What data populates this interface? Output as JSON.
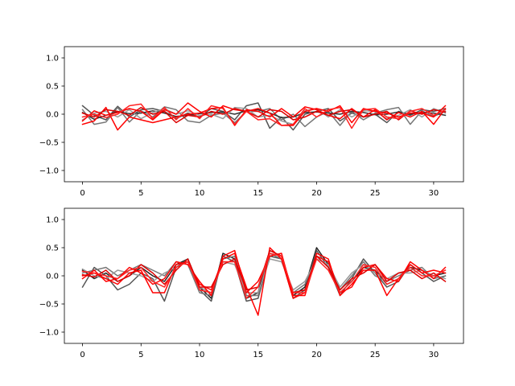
{
  "chart_data": [
    {
      "type": "line",
      "title": "",
      "xlabel": "",
      "ylabel": "",
      "xlim": [
        -1.55,
        32.55
      ],
      "ylim": [
        -1.2,
        1.2
      ],
      "x_ticks": [
        0,
        5,
        10,
        15,
        20,
        25,
        30
      ],
      "y_ticks": [
        -1.0,
        -0.5,
        0.0,
        0.5,
        1.0
      ],
      "x_tick_labels": [
        "0",
        "5",
        "10",
        "15",
        "20",
        "25",
        "30"
      ],
      "y_tick_labels": [
        "−1.0",
        "−0.5",
        "0.0",
        "0.5",
        "1.0"
      ],
      "grid": false,
      "legend": "none",
      "x": [
        0,
        1,
        2,
        3,
        4,
        5,
        6,
        7,
        8,
        9,
        10,
        11,
        12,
        13,
        14,
        15,
        16,
        17,
        18,
        19,
        20,
        21,
        22,
        23,
        24,
        25,
        26,
        27,
        28,
        29,
        30,
        31
      ],
      "series": [
        {
          "color": "#555555",
          "values": [
            0.15,
            -0.02,
            -0.1,
            0.14,
            -0.05,
            0.08,
            0.1,
            0.05,
            -0.08,
            0.02,
            -0.05,
            0.1,
            0.05,
            -0.1,
            0.15,
            0.2,
            -0.25,
            -0.05,
            -0.28,
            0.0,
            0.05,
            0.1,
            -0.12,
            0.02,
            -0.05,
            0.0,
            -0.15,
            0.05,
            -0.02,
            0.08,
            0.05,
            0.1
          ]
        },
        {
          "color": "#777777",
          "values": [
            0.08,
            -0.18,
            -0.14,
            0.12,
            -0.14,
            0.06,
            -0.05,
            0.13,
            0.08,
            -0.12,
            -0.15,
            -0.02,
            0.02,
            -0.15,
            0.05,
            0.05,
            0.1,
            -0.1,
            0.0,
            -0.22,
            -0.05,
            0.05,
            -0.2,
            0.05,
            -0.1,
            0.02,
            0.08,
            0.12,
            -0.18,
            0.06,
            -0.04,
            0.05
          ]
        },
        {
          "color": "#333333",
          "values": [
            0.03,
            -0.09,
            -0.02,
            0.05,
            0.01,
            0.02,
            0.06,
            0.02,
            -0.04,
            -0.02,
            0.01,
            0.03,
            0.04,
            0.0,
            0.06,
            0.08,
            0.02,
            -0.06,
            -0.05,
            0.03,
            0.04,
            0.02,
            0.0,
            0.05,
            0.03,
            -0.01,
            0.0,
            0.04,
            0.0,
            0.03,
            0.02,
            -0.02
          ]
        },
        {
          "color": "#999999",
          "values": [
            -0.1,
            0.02,
            0.05,
            -0.05,
            0.08,
            -0.08,
            0.03,
            0.1,
            0.0,
            0.06,
            -0.02,
            0.0,
            -0.08,
            0.12,
            0.1,
            -0.05,
            -0.02,
            -0.12,
            -0.18,
            0.06,
            0.1,
            -0.05,
            0.08,
            -0.05,
            0.06,
            0.05,
            -0.08,
            -0.02,
            0.08,
            -0.05,
            0.1,
            0.02
          ]
        },
        {
          "color": "#ff0000",
          "values": [
            -0.12,
            0.06,
            -0.02,
            0.03,
            0.1,
            0.05,
            -0.1,
            0.08,
            0.0,
            0.2,
            0.05,
            -0.05,
            0.15,
            0.08,
            0.05,
            0.1,
            0.02,
            -0.2,
            -0.2,
            0.05,
            0.1,
            0.05,
            0.15,
            -0.15,
            0.1,
            0.05,
            0.02,
            -0.05,
            0.02,
            0.02,
            -0.05,
            0.15
          ]
        },
        {
          "color": "#ff0000",
          "values": [
            -0.18,
            -0.12,
            0.12,
            -0.28,
            -0.05,
            -0.1,
            -0.15,
            -0.1,
            -0.05,
            0.0,
            0.02,
            0.1,
            0.12,
            -0.2,
            0.08,
            0.05,
            -0.05,
            0.1,
            -0.05,
            0.13,
            0.08,
            -0.02,
            -0.08,
            0.1,
            -0.05,
            0.08,
            -0.1,
            0.03,
            -0.05,
            0.05,
            -0.18,
            0.1
          ]
        },
        {
          "color": "#dd0000",
          "values": [
            0.02,
            -0.05,
            0.08,
            0.05,
            -0.02,
            0.12,
            0.0,
            0.05,
            -0.15,
            -0.02,
            -0.05,
            0.05,
            0.0,
            0.1,
            0.05,
            -0.05,
            0.08,
            0.05,
            -0.1,
            -0.05,
            0.05,
            -0.02,
            0.05,
            0.08,
            -0.05,
            0.0,
            0.05,
            -0.1,
            0.06,
            0.0,
            0.08,
            0.04
          ]
        },
        {
          "color": "#ff2222",
          "values": [
            -0.05,
            0.0,
            -0.06,
            0.0,
            0.15,
            0.18,
            -0.08,
            0.12,
            -0.1,
            0.1,
            -0.08,
            0.15,
            0.1,
            -0.18,
            0.05,
            -0.1,
            -0.08,
            -0.2,
            -0.18,
            0.1,
            -0.05,
            0.08,
            0.12,
            -0.25,
            0.08,
            0.1,
            -0.05,
            -0.08,
            0.05,
            0.1,
            -0.02,
            0.08
          ]
        }
      ]
    },
    {
      "type": "line",
      "title": "",
      "xlabel": "",
      "ylabel": "",
      "xlim": [
        -1.55,
        32.55
      ],
      "ylim": [
        -1.2,
        1.2
      ],
      "x_ticks": [
        0,
        5,
        10,
        15,
        20,
        25,
        30
      ],
      "y_ticks": [
        -1.0,
        -0.5,
        0.0,
        0.5,
        1.0
      ],
      "x_tick_labels": [
        "0",
        "5",
        "10",
        "15",
        "20",
        "25",
        "30"
      ],
      "y_tick_labels": [
        "−1.0",
        "−0.5",
        "0.0",
        "0.5",
        "1.0"
      ],
      "grid": false,
      "legend": "none",
      "x": [
        0,
        1,
        2,
        3,
        4,
        5,
        6,
        7,
        8,
        9,
        10,
        11,
        12,
        13,
        14,
        15,
        16,
        17,
        18,
        19,
        20,
        21,
        22,
        23,
        24,
        25,
        26,
        27,
        28,
        29,
        30,
        31
      ],
      "series": [
        {
          "color": "#222222",
          "values": [
            0.1,
            -0.05,
            0.05,
            -0.1,
            0.0,
            0.15,
            0.0,
            -0.1,
            0.2,
            0.3,
            -0.2,
            -0.4,
            0.4,
            0.3,
            -0.4,
            -0.3,
            0.45,
            0.35,
            -0.35,
            -0.2,
            0.5,
            0.2,
            -0.3,
            -0.1,
            0.15,
            0.1,
            -0.15,
            -0.05,
            0.15,
            0.1,
            0.0,
            0.05
          ]
        },
        {
          "color": "#555555",
          "values": [
            -0.2,
            0.15,
            0.0,
            -0.25,
            -0.15,
            0.05,
            -0.05,
            -0.45,
            0.15,
            0.3,
            -0.25,
            -0.45,
            0.35,
            0.25,
            -0.45,
            -0.4,
            0.35,
            0.3,
            -0.4,
            -0.25,
            0.45,
            0.15,
            -0.35,
            -0.05,
            0.3,
            0.05,
            -0.2,
            -0.1,
            0.2,
            0.05,
            -0.1,
            0.0
          ]
        },
        {
          "color": "#777777",
          "values": [
            0.05,
            0.1,
            0.15,
            0.0,
            0.1,
            0.2,
            0.1,
            0.0,
            0.25,
            0.2,
            -0.3,
            -0.35,
            0.3,
            0.35,
            -0.35,
            -0.35,
            0.4,
            0.3,
            -0.3,
            -0.15,
            0.35,
            0.25,
            -0.25,
            0.0,
            0.25,
            0.0,
            -0.1,
            0.0,
            0.1,
            0.15,
            -0.05,
            0.0
          ]
        },
        {
          "color": "#999999",
          "values": [
            0.12,
            0.0,
            -0.05,
            0.1,
            0.05,
            0.0,
            -0.1,
            0.05,
            0.15,
            0.25,
            -0.2,
            -0.3,
            0.25,
            0.2,
            -0.3,
            -0.3,
            0.3,
            0.25,
            -0.25,
            -0.1,
            0.3,
            0.2,
            -0.2,
            0.05,
            0.2,
            0.05,
            -0.05,
            0.05,
            0.05,
            0.1,
            0.0,
            -0.05
          ]
        },
        {
          "color": "#ff0000",
          "values": [
            0.0,
            0.05,
            -0.05,
            -0.15,
            0.05,
            0.1,
            -0.3,
            -0.3,
            0.2,
            0.25,
            -0.15,
            -0.25,
            0.3,
            0.4,
            -0.2,
            -0.7,
            0.5,
            0.3,
            -0.4,
            -0.3,
            0.4,
            0.3,
            -0.35,
            -0.15,
            0.1,
            0.1,
            -0.35,
            -0.05,
            0.2,
            0.05,
            0.1,
            0.05
          ]
        },
        {
          "color": "#ff0000",
          "values": [
            -0.05,
            0.1,
            -0.1,
            -0.05,
            0.15,
            0.05,
            -0.15,
            -0.05,
            0.25,
            0.2,
            -0.1,
            -0.35,
            0.35,
            0.45,
            -0.3,
            -0.1,
            0.35,
            0.4,
            -0.35,
            -0.35,
            0.35,
            0.25,
            -0.3,
            -0.2,
            0.15,
            0.2,
            -0.05,
            -0.1,
            0.25,
            0.1,
            -0.05,
            0.15
          ]
        },
        {
          "color": "#dd0000",
          "values": [
            0.02,
            -0.02,
            0.1,
            -0.1,
            0.0,
            0.2,
            0.05,
            -0.15,
            0.1,
            0.3,
            -0.2,
            -0.2,
            0.2,
            0.3,
            -0.25,
            -0.2,
            0.45,
            0.35,
            -0.3,
            -0.25,
            0.35,
            0.15,
            -0.25,
            -0.05,
            0.05,
            0.2,
            -0.1,
            0.05,
            0.1,
            -0.05,
            0.05,
            -0.1
          ]
        },
        {
          "color": "#ff2222",
          "values": [
            0.08,
            0.05,
            0.0,
            -0.05,
            0.1,
            0.15,
            -0.1,
            -0.2,
            0.15,
            0.25,
            -0.25,
            -0.3,
            0.25,
            0.25,
            -0.4,
            -0.2,
            0.4,
            0.35,
            -0.3,
            -0.3,
            0.3,
            0.1,
            -0.3,
            -0.1,
            0.2,
            0.15,
            -0.15,
            -0.05,
            0.15,
            0.0,
            0.0,
            0.1
          ]
        }
      ]
    }
  ]
}
